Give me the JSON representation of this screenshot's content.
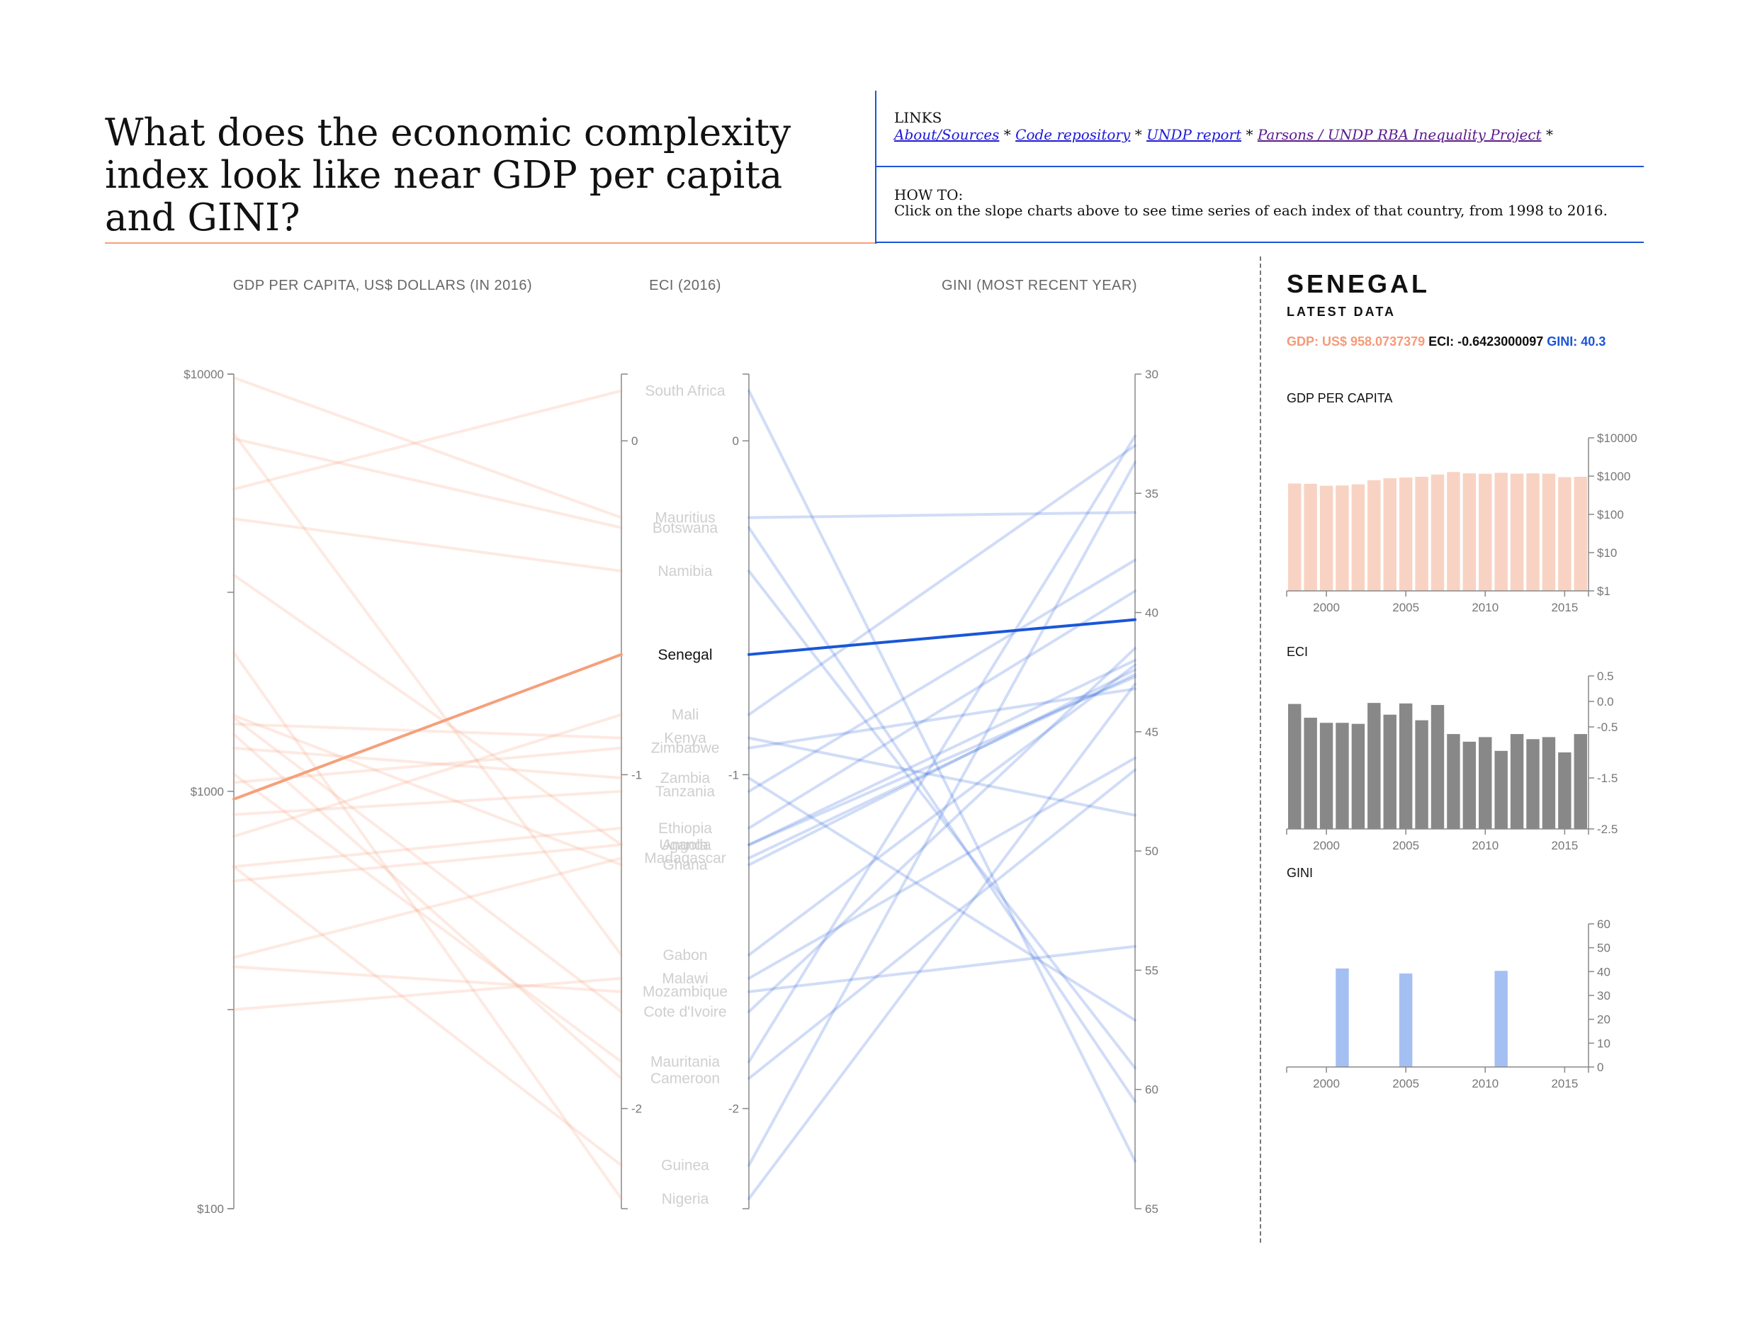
{
  "header": {
    "title": "What does the economic complexity index look like near GDP per capita and GINI?",
    "links_heading": "LINKS",
    "links": [
      "About/Sources",
      "Code repository",
      "UNDP report",
      "Parsons / UNDP RBA Inequality Project"
    ],
    "link_separator": " * ",
    "howto_heading": "HOW TO:",
    "howto_text": "Click on the slope charts above to see time series of each index of that country, from 1998 to 2016."
  },
  "colors": {
    "gdp": "#f5a07c",
    "eci": "#888888",
    "gini": "#1a56d6",
    "gini_bar": "#a4bff2",
    "gdp_bar": "#f8d3c3"
  },
  "side_panel": {
    "country": "SENEGAL",
    "latest_label": "LATEST DATA",
    "gdp_text": "GDP: US$ 958.0737379",
    "eci_text": "ECI: -0.6423000097",
    "gini_text": "GINI: 40.3",
    "gdp_title": "GDP PER CAPITA",
    "eci_title": "ECI",
    "gini_title": "GINI"
  },
  "chart_data": [
    {
      "type": "line",
      "subtype": "slope",
      "axes": [
        {
          "title": "GDP PER CAPITA, US$ DOLLARS (IN 2016)",
          "scale": "log",
          "domain": [
            100,
            10000
          ],
          "ticks": [
            "$10000",
            "$1000",
            "$100"
          ]
        },
        {
          "title": "ECI (2016)",
          "scale": "linear",
          "domain": [
            0.2,
            -2.3
          ],
          "ticks": [
            "0",
            "-1",
            "-2"
          ]
        },
        {
          "title": "GINI (MOST RECENT YEAR)",
          "scale": "linear",
          "domain": [
            30,
            65
          ],
          "ticks": [
            "30",
            "35",
            "40",
            "45",
            "50",
            "55",
            "60",
            "65"
          ]
        }
      ],
      "selected": "Senegal",
      "countries": [
        {
          "name": "South Africa",
          "gdp": 5300,
          "eci": 0.15,
          "gini": 63.0
        },
        {
          "name": "Mauritius",
          "gdp": 9800,
          "eci": -0.23,
          "gini": 35.8
        },
        {
          "name": "Botswana",
          "gdp": 7000,
          "eci": -0.26,
          "gini": 60.5
        },
        {
          "name": "Namibia",
          "gdp": 4500,
          "eci": -0.39,
          "gini": 59.1
        },
        {
          "name": "Senegal",
          "gdp": 958,
          "eci": -0.64,
          "gini": 40.3
        },
        {
          "name": "Mali",
          "gdp": 780,
          "eci": -0.82,
          "gini": 33.0
        },
        {
          "name": "Kenya",
          "gdp": 1450,
          "eci": -0.89,
          "gini": 48.5
        },
        {
          "name": "Zimbabwe",
          "gdp": 1050,
          "eci": -0.92,
          "gini": 43.2
        },
        {
          "name": "Zambia",
          "gdp": 1270,
          "eci": -1.01,
          "gini": 57.1
        },
        {
          "name": "Tanzania",
          "gdp": 880,
          "eci": -1.05,
          "gini": 37.8
        },
        {
          "name": "Ethiopia",
          "gdp": 660,
          "eci": -1.16,
          "gini": 39.1
        },
        {
          "name": "Uganda",
          "gdp": 610,
          "eci": -1.21,
          "gini": 42.0
        },
        {
          "name": "Angola",
          "gdp": 3300,
          "eci": -1.21,
          "gini": 42.7
        },
        {
          "name": "Madagascar",
          "gdp": 400,
          "eci": -1.25,
          "gini": 42.6
        },
        {
          "name": "Ghana",
          "gdp": 1520,
          "eci": -1.27,
          "gini": 42.4
        },
        {
          "name": "Gabon",
          "gdp": 7200,
          "eci": -1.54,
          "gini": 42.2
        },
        {
          "name": "Malawi",
          "gdp": 300,
          "eci": -1.61,
          "gini": 46.1
        },
        {
          "name": "Mozambique",
          "gdp": 380,
          "eci": -1.65,
          "gini": 54.0
        },
        {
          "name": "Cote d'Ivoire",
          "gdp": 1500,
          "eci": -1.71,
          "gini": 41.5
        },
        {
          "name": "Mauritania",
          "gdp": 1100,
          "eci": -1.86,
          "gini": 32.6
        },
        {
          "name": "Cameroon",
          "gdp": 1370,
          "eci": -1.91,
          "gini": 46.6
        },
        {
          "name": "Guinea",
          "gdp": 660,
          "eci": -2.17,
          "gini": 33.7
        },
        {
          "name": "Nigeria",
          "gdp": 2150,
          "eci": -2.27,
          "gini": 43.0
        }
      ]
    },
    {
      "type": "bar",
      "title": "GDP PER CAPITA",
      "scale": "log",
      "x": [
        1998,
        1999,
        2000,
        2001,
        2002,
        2003,
        2004,
        2005,
        2006,
        2007,
        2008,
        2009,
        2010,
        2011,
        2012,
        2013,
        2014,
        2015,
        2016
      ],
      "values": [
        640,
        630,
        560,
        570,
        610,
        780,
        880,
        920,
        960,
        1100,
        1280,
        1180,
        1150,
        1220,
        1160,
        1180,
        1160,
        940,
        960
      ],
      "ylim": [
        1,
        10000
      ],
      "yticks": [
        "$1",
        "$10",
        "$100",
        "$1000",
        "$10000"
      ],
      "xticks": [
        "2000",
        "2005",
        "2010",
        "2015"
      ]
    },
    {
      "type": "bar",
      "title": "ECI",
      "x": [
        1998,
        1999,
        2000,
        2001,
        2002,
        2003,
        2004,
        2005,
        2006,
        2007,
        2008,
        2009,
        2010,
        2011,
        2012,
        2013,
        2014,
        2015,
        2016
      ],
      "values": [
        -0.05,
        -0.32,
        -0.42,
        -0.42,
        -0.44,
        -0.03,
        -0.26,
        -0.04,
        -0.37,
        -0.07,
        -0.64,
        -0.79,
        -0.7,
        -0.97,
        -0.64,
        -0.74,
        -0.7,
        -1.0,
        -0.64
      ],
      "ylim": [
        -2.5,
        0.5
      ],
      "yticks": [
        "0.5",
        "0.0",
        "-0.5",
        "-1.5",
        "-2.5"
      ],
      "xticks": [
        "2000",
        "2005",
        "2010",
        "2015"
      ]
    },
    {
      "type": "bar",
      "title": "GINI",
      "x": [
        1998,
        1999,
        2000,
        2001,
        2002,
        2003,
        2004,
        2005,
        2006,
        2007,
        2008,
        2009,
        2010,
        2011,
        2012,
        2013,
        2014,
        2015,
        2016
      ],
      "values": [
        null,
        null,
        null,
        41.3,
        null,
        null,
        null,
        39.2,
        null,
        null,
        null,
        null,
        null,
        40.3,
        null,
        null,
        null,
        null,
        null
      ],
      "ylim": [
        0,
        60
      ],
      "yticks": [
        "0",
        "10",
        "20",
        "30",
        "40",
        "50",
        "60"
      ],
      "xticks": [
        "2000",
        "2005",
        "2010",
        "2015"
      ]
    }
  ]
}
